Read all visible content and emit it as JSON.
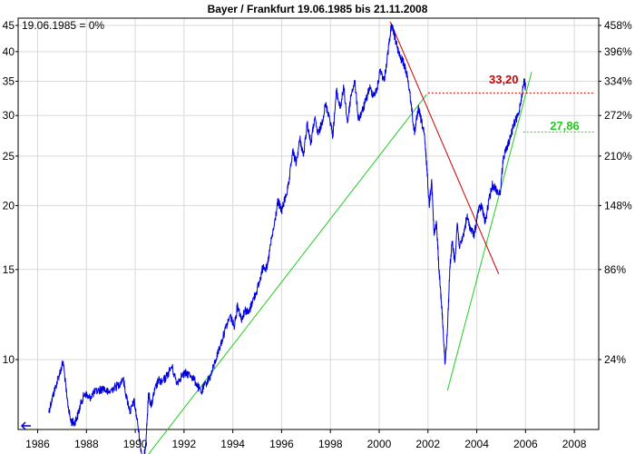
{
  "chart_data": {
    "type": "line",
    "title": "Bayer / Frankfurt 19.06.1985 bis 21.11.2008",
    "note": "19.06.1985 = 0%",
    "y_scale": "log",
    "xlim": [
      1985.2,
      2009.0
    ],
    "ylim": [
      7.3,
      46.5
    ],
    "grid": true,
    "x_ticks": [
      "1986",
      "1988",
      "1990",
      "1992",
      "1994",
      "1996",
      "1998",
      "2000",
      "2002",
      "2004",
      "2006",
      "2008"
    ],
    "y_ticks_left": [
      10,
      15,
      20,
      25,
      30,
      35,
      40,
      45
    ],
    "y_ticks_right": [
      {
        "label": "24%",
        "value": 10.0
      },
      {
        "label": "86%",
        "value": 15.0
      },
      {
        "label": "148%",
        "value": 20.0
      },
      {
        "label": "210%",
        "value": 25.0
      },
      {
        "label": "272%",
        "value": 30.0
      },
      {
        "label": "334%",
        "value": 35.0
      },
      {
        "label": "396%",
        "value": 40.0
      },
      {
        "label": "458%",
        "value": 45.0
      }
    ],
    "series": [
      {
        "color": "#0000dd",
        "x": [
          1986.45,
          1986.6,
          1986.75,
          1986.9,
          1987.05,
          1987.2,
          1987.35,
          1987.5,
          1987.65,
          1987.8,
          1987.95,
          1988.1,
          1988.3,
          1988.5,
          1988.7,
          1988.9,
          1989.1,
          1989.3,
          1989.5,
          1989.65,
          1989.8,
          1989.95,
          1990.1,
          1990.25,
          1990.35,
          1990.45,
          1990.55,
          1990.65,
          1990.8,
          1990.95,
          1991.1,
          1991.3,
          1991.5,
          1991.7,
          1991.9,
          1992.1,
          1992.3,
          1992.5,
          1992.7,
          1992.9,
          1993.1,
          1993.3,
          1993.5,
          1993.7,
          1993.9,
          1994.05,
          1994.2,
          1994.35,
          1994.5,
          1994.65,
          1994.8,
          1994.95,
          1995.1,
          1995.25,
          1995.4,
          1995.55,
          1995.7,
          1995.85,
          1996.0,
          1996.15,
          1996.3,
          1996.45,
          1996.6,
          1996.75,
          1996.9,
          1997.05,
          1997.2,
          1997.35,
          1997.5,
          1997.65,
          1997.8,
          1997.95,
          1998.1,
          1998.25,
          1998.4,
          1998.55,
          1998.7,
          1998.85,
          1999.0,
          1999.15,
          1999.3,
          1999.45,
          1999.6,
          1999.75,
          1999.9,
          2000.05,
          2000.2,
          2000.35,
          2000.5,
          2000.6,
          2000.7,
          2000.85,
          2001.0,
          2001.15,
          2001.3,
          2001.45,
          2001.6,
          2001.75,
          2001.85,
          2001.95,
          2002.05,
          2002.15,
          2002.25,
          2002.35,
          2002.45,
          2002.55,
          2002.62,
          2002.7,
          2002.8,
          2002.9,
          2003.0,
          2003.1,
          2003.2,
          2003.3,
          2003.45,
          2003.6,
          2003.75,
          2003.9,
          2004.05,
          2004.2,
          2004.35,
          2004.5,
          2004.65,
          2004.8,
          2004.95,
          2005.1,
          2005.25,
          2005.4,
          2005.55,
          2005.7,
          2005.85,
          2005.95,
          2006.0
        ],
        "y": [
          7.9,
          8.4,
          8.9,
          9.4,
          9.9,
          8.4,
          7.6,
          7.5,
          7.8,
          8.3,
          8.6,
          8.4,
          8.6,
          8.7,
          8.8,
          8.6,
          8.8,
          8.9,
          9.2,
          8.4,
          7.9,
          8.3,
          7.5,
          6.6,
          6.3,
          7.1,
          8.6,
          8.1,
          8.7,
          9.1,
          9.0,
          9.3,
          9.7,
          9.0,
          9.3,
          9.4,
          9.3,
          9.0,
          8.6,
          9.0,
          9.3,
          10.0,
          10.7,
          11.5,
          12.2,
          11.6,
          12.8,
          12.0,
          12.5,
          12.3,
          13.0,
          13.5,
          14.2,
          15.3,
          15.0,
          16.8,
          18.3,
          20.4,
          19.5,
          20.7,
          22.0,
          25.6,
          24.2,
          27.0,
          25.0,
          29.0,
          26.4,
          29.6,
          27.5,
          29.0,
          31.5,
          30.0,
          27.4,
          33.5,
          31.0,
          34.0,
          29.0,
          33.0,
          35.0,
          29.5,
          30.5,
          32.0,
          34.0,
          33.0,
          33.5,
          37.0,
          35.0,
          39.5,
          45.0,
          43.5,
          41.5,
          39.0,
          38.0,
          36.0,
          32.0,
          27.5,
          31.0,
          29.0,
          27.5,
          24.0,
          20.0,
          22.5,
          17.5,
          18.5,
          15.0,
          13.0,
          11.5,
          9.8,
          11.5,
          15.2,
          17.0,
          15.5,
          18.5,
          16.5,
          17.5,
          19.0,
          18.0,
          17.5,
          19.5,
          20.0,
          18.5,
          20.5,
          22.0,
          21.5,
          21.0,
          25.0,
          26.0,
          27.5,
          29.0,
          30.0,
          33.0,
          35.2,
          34.0
        ]
      }
    ],
    "trendlines": [
      {
        "color": "#22cc22",
        "x": [
          1990.4,
          2001.95
        ],
        "y": [
          6.4,
          33.0
        ]
      },
      {
        "color": "#22cc22",
        "x": [
          2002.8,
          2006.25
        ],
        "y": [
          8.7,
          36.5
        ]
      },
      {
        "color": "#cc0000",
        "x": [
          2000.45,
          2004.9
        ],
        "y": [
          45.8,
          14.7
        ]
      }
    ],
    "annotations": [
      {
        "text": "33,20",
        "value": 33.2,
        "color": "#cc0000",
        "x_from": 2002.0,
        "x_to": 2009.0,
        "label_x": 2004.5,
        "label_y": 35.2
      },
      {
        "text": "27,86",
        "value": 27.86,
        "color": "#22cc22",
        "x_from": 2005.9,
        "x_to": 2009.0,
        "label_x": 2007.0,
        "label_y": 28.6
      }
    ],
    "line_color": "#0000dd",
    "grid_color": "#d9d9d9",
    "frame_color": "#000000"
  }
}
